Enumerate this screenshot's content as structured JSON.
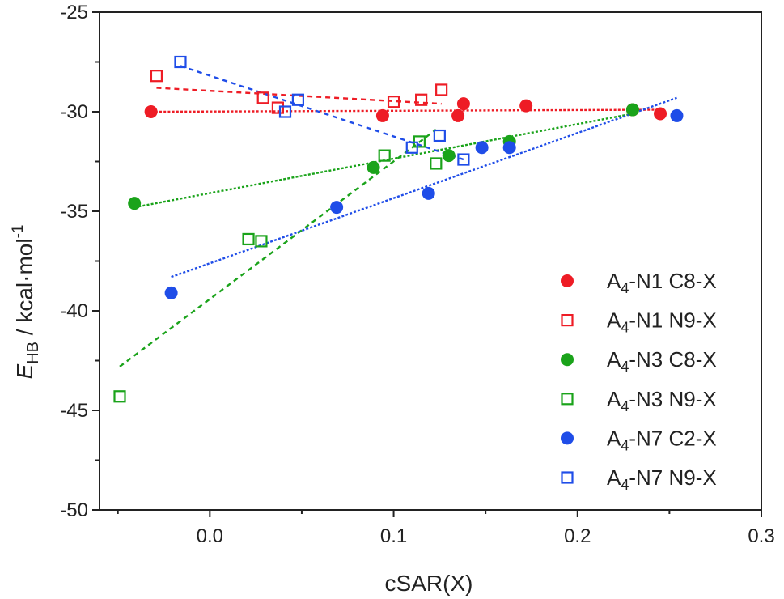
{
  "chart_data": {
    "type": "scatter",
    "title": "",
    "xlabel": "cSAR(X)",
    "ylabel": {
      "main": "E",
      "subscript": "HB",
      "units": " / kcal·mol",
      "superscript": "-1"
    },
    "xlim": [
      -0.06,
      0.3
    ],
    "ylim": [
      -50,
      -25
    ],
    "xticks": [
      {
        "value": 0.0,
        "label": "0.0"
      },
      {
        "value": 0.1,
        "label": "0.1"
      },
      {
        "value": 0.2,
        "label": "0.2"
      },
      {
        "value": 0.3,
        "label": "0.3"
      }
    ],
    "xminor": [
      -0.05,
      0.05,
      0.15,
      0.25
    ],
    "yticks": [
      {
        "value": -25,
        "label": "-25"
      },
      {
        "value": -30,
        "label": "-30"
      },
      {
        "value": -35,
        "label": "-35"
      },
      {
        "value": -40,
        "label": "-40"
      },
      {
        "value": -45,
        "label": "-45"
      },
      {
        "value": -50,
        "label": "-50"
      }
    ],
    "yminor": [
      -27.5,
      -32.5,
      -37.5,
      -42.5,
      -47.5
    ],
    "legend_position": "bottom-right",
    "series": [
      {
        "name": "A4-N1 C8-X",
        "label_prefix": "A",
        "label_sub": "4",
        "label_rest": "-N1 C8-X",
        "color": "#ee1c25",
        "marker": "filled-circle",
        "points": [
          [
            -0.032,
            -30.0
          ],
          [
            0.094,
            -30.2
          ],
          [
            0.135,
            -30.2
          ],
          [
            0.138,
            -29.6
          ],
          [
            0.172,
            -29.7
          ],
          [
            0.23,
            -29.9
          ],
          [
            0.245,
            -30.1
          ]
        ],
        "fit": [
          [
            -0.032,
            -30.0
          ],
          [
            0.245,
            -29.9
          ]
        ]
      },
      {
        "name": "A4-N1 N9-X",
        "label_prefix": "A",
        "label_sub": "4",
        "label_rest": "-N1 N9-X",
        "color": "#ee1c25",
        "marker": "open-square",
        "points": [
          [
            -0.029,
            -28.2
          ],
          [
            0.029,
            -29.3
          ],
          [
            0.037,
            -29.8
          ],
          [
            0.1,
            -29.5
          ],
          [
            0.115,
            -29.4
          ],
          [
            0.126,
            -28.9
          ]
        ],
        "fit": [
          [
            -0.029,
            -28.8
          ],
          [
            0.126,
            -29.6
          ]
        ]
      },
      {
        "name": "A4-N3 C8-X",
        "label_prefix": "A",
        "label_sub": "4",
        "label_rest": "-N3 C8-X",
        "color": "#1aa31a",
        "marker": "filled-circle",
        "points": [
          [
            -0.041,
            -34.6
          ],
          [
            0.089,
            -32.8
          ],
          [
            0.13,
            -32.2
          ],
          [
            0.163,
            -31.5
          ],
          [
            0.23,
            -29.9
          ]
        ],
        "fit": [
          [
            -0.041,
            -34.8
          ],
          [
            0.23,
            -30.1
          ]
        ]
      },
      {
        "name": "A4-N3 N9-X",
        "label_prefix": "A",
        "label_sub": "4",
        "label_rest": "-N3 N9-X",
        "color": "#1aa31a",
        "marker": "open-square",
        "points": [
          [
            -0.049,
            -44.3
          ],
          [
            0.021,
            -36.4
          ],
          [
            0.028,
            -36.5
          ],
          [
            0.095,
            -32.2
          ],
          [
            0.114,
            -31.5
          ],
          [
            0.123,
            -32.6
          ]
        ],
        "fit": [
          [
            -0.049,
            -42.8
          ],
          [
            0.123,
            -30.9
          ]
        ]
      },
      {
        "name": "A4-N7 C2-X",
        "label_prefix": "A",
        "label_sub": "4",
        "label_rest": "-N7 C2-X",
        "color": "#1f4de8",
        "marker": "filled-circle",
        "points": [
          [
            -0.021,
            -39.1
          ],
          [
            0.069,
            -34.8
          ],
          [
            0.119,
            -34.1
          ],
          [
            0.148,
            -31.8
          ],
          [
            0.163,
            -31.8
          ],
          [
            0.254,
            -30.2
          ]
        ],
        "fit": [
          [
            -0.021,
            -38.3
          ],
          [
            0.254,
            -29.3
          ]
        ]
      },
      {
        "name": "A4-N7 N9-X",
        "label_prefix": "A",
        "label_sub": "4",
        "label_rest": "-N7 N9-X",
        "color": "#1f4de8",
        "marker": "open-square",
        "points": [
          [
            -0.016,
            -27.5
          ],
          [
            0.041,
            -30.0
          ],
          [
            0.048,
            -29.4
          ],
          [
            0.11,
            -31.8
          ],
          [
            0.125,
            -31.2
          ],
          [
            0.138,
            -32.4
          ]
        ],
        "fit": [
          [
            -0.016,
            -27.7
          ],
          [
            0.138,
            -32.4
          ]
        ]
      }
    ]
  }
}
